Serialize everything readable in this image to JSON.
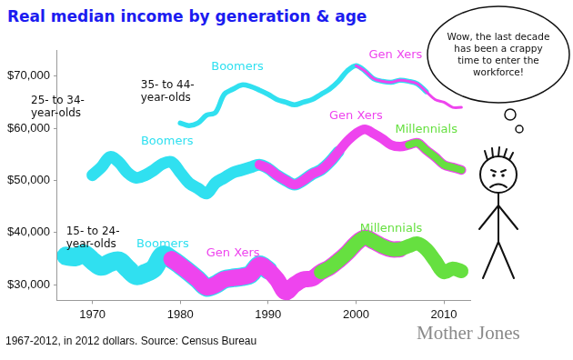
{
  "thought": "Wow, the last decade has been a crappy time to enter the workforce!",
  "source": "1967-2012, in 2012 dollars. Source: Census Bureau",
  "credit": "Mother Jones",
  "chart_data": {
    "type": "line",
    "title": "Real median income by generation & age",
    "x": [
      1967,
      1968,
      1969,
      1970,
      1971,
      1972,
      1973,
      1974,
      1975,
      1976,
      1977,
      1978,
      1979,
      1980,
      1981,
      1982,
      1983,
      1984,
      1985,
      1986,
      1987,
      1988,
      1989,
      1990,
      1991,
      1992,
      1993,
      1994,
      1995,
      1996,
      1997,
      1998,
      1999,
      2000,
      2001,
      2002,
      2003,
      2004,
      2005,
      2006,
      2007,
      2008,
      2009,
      2010,
      2011,
      2012
    ],
    "xlim": [
      1966,
      2013
    ],
    "xticks": [
      1970,
      1980,
      1990,
      2000,
      2010
    ],
    "ylim": [
      27000,
      75000
    ],
    "yticks": [
      {
        "value": 30000,
        "label": "$30,000"
      },
      {
        "value": 40000,
        "label": "$40,000"
      },
      {
        "value": 50000,
        "label": "$50,000"
      },
      {
        "value": 60000,
        "label": "$60,000"
      },
      {
        "value": 70000,
        "label": "$70,000"
      }
    ],
    "grid": false,
    "annotations": [
      {
        "text": "35- to 44-\nyear-olds",
        "x": 1975.5,
        "y": 67000
      },
      {
        "text": "25- to 34-\nyear-olds",
        "x": 1963,
        "y": 64000
      },
      {
        "text": "15- to 24-\nyear-olds",
        "x": 1967,
        "y": 39000
      }
    ],
    "series": [
      {
        "name": "Boomers",
        "color": "#30e0f0",
        "label_x": 1978,
        "label_y": 37800,
        "values": [
          35500,
          35300,
          35900,
          34600,
          33500,
          34200,
          34600,
          33100,
          31700,
          32200,
          33100,
          35700,
          34900,
          33700,
          32400,
          31000,
          29500,
          30000,
          31000,
          31300,
          31500,
          32000,
          33800,
          32800,
          null,
          null,
          null,
          null,
          null,
          null,
          null,
          null,
          null,
          null,
          null,
          null,
          null,
          null,
          null,
          null,
          null,
          null,
          null,
          null,
          null,
          null
        ]
      },
      {
        "name": "Gen Xers",
        "color": "#ee44ee",
        "label_x": 1986,
        "label_y": 36000,
        "values": [
          null,
          null,
          null,
          null,
          null,
          null,
          null,
          null,
          null,
          null,
          null,
          null,
          34900,
          33700,
          32400,
          31000,
          29500,
          30000,
          31000,
          31300,
          31500,
          32000,
          33800,
          32800,
          31000,
          28600,
          30000,
          31000,
          31200,
          32400,
          33300,
          34600,
          36100,
          37900,
          39000,
          38300,
          37400,
          36800,
          36800,
          null,
          null,
          null,
          null,
          null,
          null,
          null
        ]
      },
      {
        "name": "Millennials",
        "color": "#66e040",
        "label_x": 2004,
        "label_y": 40800,
        "values": [
          null,
          null,
          null,
          null,
          null,
          null,
          null,
          null,
          null,
          null,
          null,
          null,
          null,
          null,
          null,
          null,
          null,
          null,
          null,
          null,
          null,
          null,
          null,
          null,
          null,
          null,
          null,
          null,
          null,
          32400,
          33300,
          34600,
          36100,
          37900,
          39000,
          38300,
          37400,
          36800,
          36800,
          37400,
          37900,
          36800,
          34600,
          32400,
          33100,
          32600
        ]
      },
      {
        "name": "Boomers",
        "color": "#30e0f0",
        "label_x": 1978.5,
        "label_y": 57500,
        "values": [
          null,
          null,
          null,
          51000,
          52500,
          54500,
          53500,
          51500,
          50500,
          51000,
          52000,
          53200,
          53500,
          51500,
          49500,
          48500,
          47500,
          49500,
          50500,
          51500,
          52000,
          52500,
          53000,
          52300,
          51000,
          50000,
          49200,
          50000,
          51200,
          52000,
          53500,
          55500,
          null,
          null,
          null,
          null,
          null,
          null,
          null,
          null,
          null,
          null,
          null,
          null,
          null,
          null
        ]
      },
      {
        "name": "Gen Xers",
        "color": "#ee44ee",
        "label_x": 2000,
        "label_y": 62300,
        "values": [
          null,
          null,
          null,
          null,
          null,
          null,
          null,
          null,
          null,
          null,
          null,
          null,
          null,
          null,
          null,
          null,
          null,
          null,
          null,
          null,
          null,
          null,
          53000,
          52300,
          51000,
          50000,
          49200,
          50000,
          51200,
          52000,
          53500,
          55500,
          57500,
          59000,
          59800,
          59000,
          58000,
          56800,
          56500,
          56800,
          57200,
          55800,
          54500,
          53000,
          52500,
          52000
        ]
      },
      {
        "name": "Millennials",
        "color": "#66e040",
        "label_x": 2008,
        "label_y": 59800,
        "values": [
          null,
          null,
          null,
          null,
          null,
          null,
          null,
          null,
          null,
          null,
          null,
          null,
          null,
          null,
          null,
          null,
          null,
          null,
          null,
          null,
          null,
          null,
          null,
          null,
          null,
          null,
          null,
          null,
          null,
          null,
          null,
          null,
          null,
          null,
          null,
          null,
          null,
          null,
          null,
          56800,
          57200,
          55800,
          54500,
          53000,
          52500,
          52000
        ]
      },
      {
        "name": "Boomers",
        "color": "#30e0f0",
        "label_x": 1986.5,
        "label_y": 71800,
        "values": [
          null,
          null,
          null,
          null,
          null,
          null,
          null,
          null,
          null,
          null,
          null,
          null,
          null,
          61000,
          60500,
          61000,
          62500,
          63000,
          66500,
          67500,
          68300,
          68000,
          67300,
          66500,
          65500,
          65000,
          64500,
          65000,
          65500,
          66500,
          67500,
          69000,
          71000,
          72000,
          71000,
          69500,
          69000,
          68800,
          69200,
          69000,
          68500,
          67000,
          null,
          null,
          null,
          null
        ]
      },
      {
        "name": "Gen Xers",
        "color": "#ee44ee",
        "label_x": 2004.5,
        "label_y": 74000,
        "values": [
          null,
          null,
          null,
          null,
          null,
          null,
          null,
          null,
          null,
          null,
          null,
          null,
          null,
          null,
          null,
          null,
          null,
          null,
          null,
          null,
          null,
          null,
          null,
          null,
          null,
          null,
          null,
          null,
          null,
          null,
          null,
          null,
          null,
          72000,
          71000,
          69500,
          69000,
          68800,
          69200,
          69000,
          68500,
          67000,
          65500,
          65000,
          64000,
          64000
        ]
      }
    ]
  }
}
